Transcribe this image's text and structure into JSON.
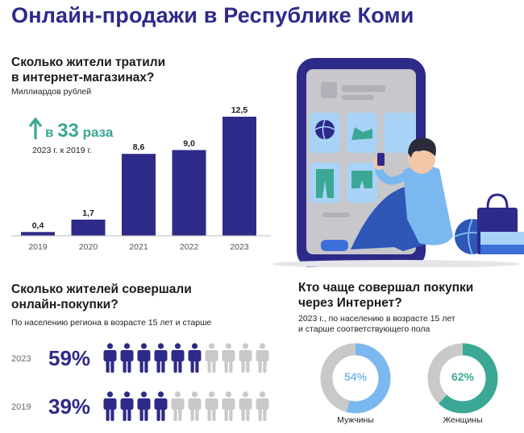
{
  "title": "Онлайн-продажи в Республике Коми",
  "spending": {
    "heading_line1": "Сколько жители тратили",
    "heading_line2": "в интернет-магазинах?",
    "unit": "Миллиардов рублей",
    "growth_prefix": "в",
    "growth_value": "33",
    "growth_suffix": "раза",
    "growth_note": "2023 г. к 2019 г."
  },
  "buyers": {
    "heading_line1": "Сколько жителей совершали",
    "heading_line2": "онлайн-покупки?",
    "note": "По населению региона в возрасте 15 лет и старше",
    "rows": [
      {
        "year": "2023",
        "label": "59%",
        "value": 59
      },
      {
        "year": "2019",
        "label": "39%",
        "value": 39
      }
    ]
  },
  "gender": {
    "heading_line1": "Кто чаще совершал покупки",
    "heading_line2": "через Интернет?",
    "note_line1": "2023 г., по населению в возрасте 15 лет",
    "note_line2": "и старше соответствующего пола",
    "items": [
      {
        "label": "Мужчины",
        "pct_label": "54%",
        "value": 54,
        "color": "#7cb8f0"
      },
      {
        "label": "Женщины",
        "pct_label": "62%",
        "value": 62,
        "color": "#3aa894"
      }
    ]
  },
  "colors": {
    "primary": "#2e2a8a",
    "accent_green": "#3aa894",
    "grey": "#c9c9c9",
    "blue": "#7cb8f0"
  },
  "chart_data": [
    {
      "type": "bar",
      "categories": [
        "2019",
        "2020",
        "2021",
        "2022",
        "2023"
      ],
      "values": [
        0.4,
        1.7,
        8.6,
        9.0,
        12.5
      ],
      "value_labels": [
        "0,4",
        "1,7",
        "8,6",
        "9,0",
        "12,5"
      ],
      "title": "Сколько жители тратили в интернет-магазинах?",
      "ylabel": "Миллиардов рублей",
      "grid": false
    },
    {
      "type": "pie",
      "categories": [
        "Мужчины"
      ],
      "values": [
        54
      ],
      "title": "Кто чаще совершал покупки через Интернет?"
    },
    {
      "type": "pie",
      "categories": [
        "Женщины"
      ],
      "values": [
        62
      ],
      "title": "Кто чаще совершал покупки через Интернет?"
    }
  ]
}
